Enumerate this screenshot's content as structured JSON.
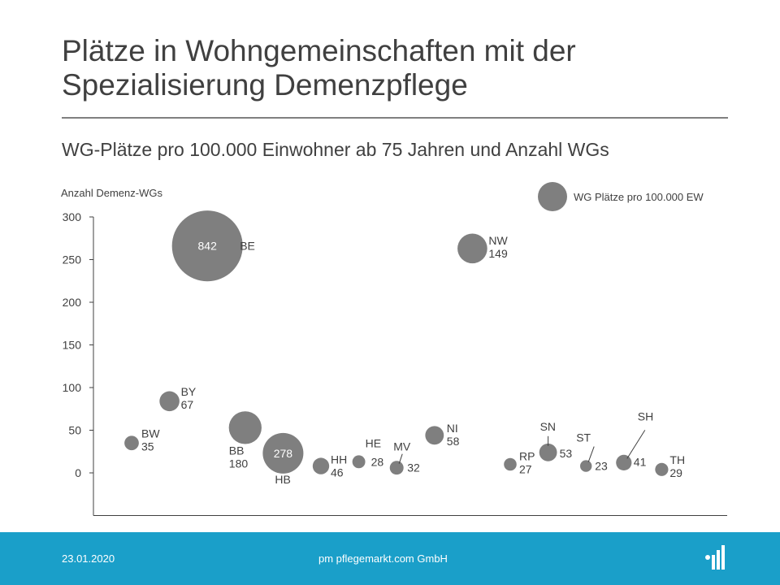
{
  "title": "Plätze in Wohngemeinschaften mit der Spezialisierung Demenzpflege",
  "subtitle": "WG-Plätze pro 100.000 Einwohner ab 75 Jahren und Anzahl WGs",
  "footer": {
    "date": "23.01.2020",
    "company": "pm pflegemarkt.com GmbH"
  },
  "colors": {
    "bubble": "#7f7f7f",
    "axis": "#404040",
    "footer": "#1a9fc9",
    "text": "#404040"
  },
  "chart_data": {
    "type": "bubble",
    "ylabel": "Anzahl Demenz-WGs",
    "legend": "WG Plätze pro 100.000 EW",
    "legend_position": "top-right",
    "ylim": [
      -50,
      300
    ],
    "yticks": [
      0,
      50,
      100,
      150,
      200,
      250,
      300
    ],
    "x_axis_labels": false,
    "grid": false,
    "points": [
      {
        "label": "BW",
        "x": 1,
        "y": 35,
        "size": 35
      },
      {
        "label": "BY",
        "x": 2,
        "y": 84,
        "size": 67
      },
      {
        "label": "BE",
        "x": 3,
        "y": 266,
        "size": 842
      },
      {
        "label": "BB",
        "x": 4,
        "y": 53,
        "size": 180
      },
      {
        "label": "HB",
        "x": 5,
        "y": 23,
        "size": 278
      },
      {
        "label": "HH",
        "x": 6,
        "y": 8,
        "size": 46
      },
      {
        "label": "HE",
        "x": 7,
        "y": 13,
        "size": 28
      },
      {
        "label": "MV",
        "x": 8,
        "y": 6,
        "size": 32
      },
      {
        "label": "NI",
        "x": 9,
        "y": 44,
        "size": 58
      },
      {
        "label": "NW",
        "x": 10,
        "y": 263,
        "size": 149
      },
      {
        "label": "RP",
        "x": 11,
        "y": 10,
        "size": 27
      },
      {
        "label": "SN",
        "x": 12,
        "y": 24,
        "size": 53
      },
      {
        "label": "ST",
        "x": 13,
        "y": 8,
        "size": 23
      },
      {
        "label": "SH",
        "x": 14,
        "y": 12,
        "size": 41
      },
      {
        "label": "TH",
        "x": 15,
        "y": 4,
        "size": 29
      }
    ]
  }
}
